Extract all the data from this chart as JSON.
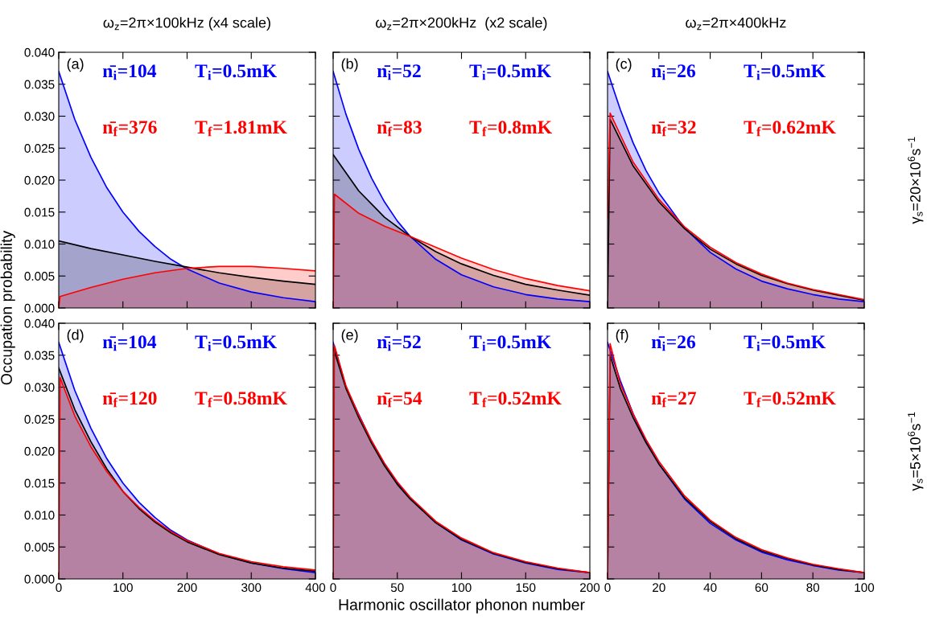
{
  "chart_data": [
    {
      "type": "area",
      "title": "ω$_{z}$=2π×100kHz (x4 scale)",
      "ylabel": "Occupation probability",
      "tick_labels": "y",
      "annotations": [
        "(a)",
        "n̄$_{i}$=104",
        "T$_{i}$=0.5mK",
        "n̄$_{f}$=376",
        "T$_{f}$=1.81mK"
      ],
      "xlim": [
        0,
        400
      ],
      "xticks": [
        0,
        100,
        200,
        300,
        400
      ],
      "ylim": [
        0,
        0.04
      ],
      "yticks": [
        {
          "value": 0,
          "label": "0.000"
        },
        {
          "value": 0.005,
          "label": "0.005"
        },
        {
          "value": 0.01,
          "label": "0.010"
        },
        {
          "value": 0.015,
          "label": "0.015"
        },
        {
          "value": 0.02,
          "label": "0.020"
        },
        {
          "value": 0.025,
          "label": "0.025"
        },
        {
          "value": 0.03,
          "label": "0.030"
        },
        {
          "value": 0.035,
          "label": "0.035"
        },
        {
          "value": 0.04,
          "label": "0.040"
        }
      ],
      "series": [
        {
          "color": "#0000ff",
          "x": [
            0,
            25,
            50,
            75,
            100,
            125,
            150,
            175,
            200,
            250,
            300,
            350,
            400
          ],
          "values": [
            0.037,
            0.0295,
            0.0236,
            0.0188,
            0.015,
            0.012,
            0.0096,
            0.0076,
            0.0061,
            0.0039,
            0.0025,
            0.0016,
            0.001
          ]
        },
        {
          "color": "#000000",
          "x": [
            0,
            50,
            100,
            150,
            200,
            250,
            300,
            350,
            400
          ],
          "values": [
            0.0105,
            0.0093,
            0.0083,
            0.0073,
            0.0064,
            0.0055,
            0.0048,
            0.0042,
            0.0037
          ]
        },
        {
          "color": "#ff0000",
          "x": [
            0,
            2,
            50,
            100,
            150,
            200,
            250,
            300,
            350,
            400
          ],
          "values": [
            0.0,
            0.0018,
            0.0032,
            0.0045,
            0.0055,
            0.0062,
            0.0065,
            0.0065,
            0.0062,
            0.0058
          ]
        }
      ]
    },
    {
      "type": "area",
      "title": "ω$_{z}$=2π×200kHz  (x2 scale)",
      "tick_labels": false,
      "annotations": [
        "(b)",
        "n̄$_{i}$=52",
        "T$_{i}$=0.5mK",
        "n̄$_{f}$=83",
        "T$_{f}$=0.8mK"
      ],
      "xlim": [
        0,
        200
      ],
      "xticks": [
        0,
        50,
        100,
        150,
        200
      ],
      "ylim": [
        0,
        0.04
      ],
      "series": [
        {
          "color": "#0000ff",
          "x": [
            0,
            10,
            20,
            30,
            40,
            50,
            60,
            80,
            100,
            125,
            150,
            175,
            200
          ],
          "values": [
            0.037,
            0.0303,
            0.0248,
            0.0203,
            0.0166,
            0.0136,
            0.0112,
            0.0076,
            0.0052,
            0.0033,
            0.0021,
            0.0014,
            0.001
          ]
        },
        {
          "color": "#000000",
          "x": [
            0,
            20,
            40,
            60,
            80,
            100,
            125,
            150,
            175,
            200
          ],
          "values": [
            0.024,
            0.0183,
            0.0142,
            0.0112,
            0.0088,
            0.0069,
            0.0051,
            0.0037,
            0.0028,
            0.002
          ]
        },
        {
          "color": "#ff0000",
          "x": [
            0,
            1,
            20,
            40,
            60,
            80,
            100,
            125,
            150,
            175,
            200
          ],
          "values": [
            0.0,
            0.0178,
            0.0148,
            0.0128,
            0.0112,
            0.0095,
            0.0078,
            0.006,
            0.0046,
            0.0035,
            0.0027
          ]
        }
      ]
    },
    {
      "type": "area",
      "title": "ω$_{z}$=2π×400kHz",
      "y2label": "γ$_{s}$=20×10$^{6}$s$^{−1}$",
      "tick_labels": false,
      "annotations": [
        "(c)",
        "n̄$_{i}$=26",
        "T$_{i}$=0.5mK",
        "n̄$_{f}$=32",
        "T$_{f}$=0.62mK"
      ],
      "xlim": [
        0,
        100
      ],
      "xticks": [
        0,
        20,
        40,
        60,
        80,
        100
      ],
      "ylim": [
        0,
        0.04
      ],
      "series": [
        {
          "color": "#0000ff",
          "x": [
            0,
            5,
            10,
            15,
            20,
            30,
            40,
            50,
            60,
            70,
            80,
            90,
            100
          ],
          "values": [
            0.037,
            0.031,
            0.0258,
            0.0215,
            0.018,
            0.0125,
            0.0087,
            0.0061,
            0.0042,
            0.003,
            0.0021,
            0.0014,
            0.001
          ]
        },
        {
          "color": "#000000",
          "x": [
            0,
            1,
            10,
            20,
            30,
            40,
            50,
            60,
            70,
            80,
            90,
            100
          ],
          "values": [
            0.0,
            0.0295,
            0.0222,
            0.0166,
            0.0124,
            0.0092,
            0.0069,
            0.0051,
            0.0038,
            0.0028,
            0.002,
            0.0012
          ]
        },
        {
          "color": "#ff0000",
          "x": [
            0,
            1,
            10,
            20,
            30,
            40,
            50,
            60,
            70,
            80,
            90,
            100
          ],
          "values": [
            0.014,
            0.0305,
            0.0228,
            0.017,
            0.0127,
            0.0095,
            0.0071,
            0.0053,
            0.0039,
            0.0029,
            0.0021,
            0.0013
          ]
        }
      ]
    },
    {
      "type": "area",
      "annotations": [
        "(d)",
        "n̄$_{i}$=104",
        "T$_{i}$=0.5mK",
        "n̄$_{f}$=120",
        "T$_{f}$=0.58mK"
      ],
      "xlim": [
        0,
        400
      ],
      "xticks": [
        0,
        100,
        200,
        300,
        400
      ],
      "ylim": [
        0,
        0.04
      ],
      "yticks": [
        {
          "value": 0,
          "label": "0.000"
        },
        {
          "value": 0.005,
          "label": "0.005"
        },
        {
          "value": 0.01,
          "label": "0.010"
        },
        {
          "value": 0.015,
          "label": "0.015"
        },
        {
          "value": 0.02,
          "label": "0.020"
        },
        {
          "value": 0.025,
          "label": "0.025"
        },
        {
          "value": 0.03,
          "label": "0.030"
        },
        {
          "value": 0.035,
          "label": "0.035"
        },
        {
          "value": 0.04,
          "label": "0.040"
        }
      ],
      "series": [
        {
          "color": "#0000ff",
          "x": [
            0,
            25,
            50,
            75,
            100,
            125,
            150,
            175,
            200,
            250,
            300,
            350,
            400
          ],
          "values": [
            0.037,
            0.0295,
            0.0236,
            0.0188,
            0.015,
            0.012,
            0.0096,
            0.0076,
            0.0061,
            0.0039,
            0.0025,
            0.0016,
            0.001
          ]
        },
        {
          "color": "#000000",
          "x": [
            0,
            25,
            50,
            75,
            100,
            125,
            150,
            175,
            200,
            250,
            300,
            350,
            400
          ],
          "values": [
            0.033,
            0.0265,
            0.0215,
            0.0172,
            0.0137,
            0.011,
            0.0089,
            0.0072,
            0.0058,
            0.0038,
            0.0025,
            0.0017,
            0.0012
          ]
        },
        {
          "color": "#ff0000",
          "x": [
            0,
            2,
            25,
            50,
            75,
            100,
            125,
            150,
            175,
            200,
            250,
            300,
            350,
            400
          ],
          "values": [
            0.0,
            0.0315,
            0.0255,
            0.0207,
            0.0168,
            0.0137,
            0.0112,
            0.0091,
            0.0074,
            0.006,
            0.004,
            0.0027,
            0.0019,
            0.0014
          ]
        }
      ]
    },
    {
      "type": "area",
      "xlabel": "Harmonic oscillator phonon number",
      "tick_labels": "x",
      "annotations": [
        "(e)",
        "n̄$_{i}$=52",
        "T$_{i}$=0.5mK",
        "n̄$_{f}$=54",
        "T$_{f}$=0.52mK"
      ],
      "xlim": [
        0,
        200
      ],
      "xticks": [
        0,
        50,
        100,
        150,
        200
      ],
      "ylim": [
        0,
        0.04
      ],
      "series": [
        {
          "color": "#0000ff",
          "x": [
            0,
            10,
            20,
            30,
            40,
            50,
            60,
            80,
            100,
            125,
            150,
            175,
            200
          ],
          "values": [
            0.037,
            0.03,
            0.0257,
            0.0215,
            0.018,
            0.015,
            0.0126,
            0.0088,
            0.0061,
            0.0039,
            0.0025,
            0.0015,
            0.001
          ]
        },
        {
          "color": "#000000",
          "x": [
            0,
            10,
            20,
            30,
            40,
            50,
            60,
            80,
            100,
            125,
            150,
            175,
            200
          ],
          "values": [
            0.0362,
            0.0298,
            0.0252,
            0.0212,
            0.0177,
            0.0148,
            0.0125,
            0.0088,
            0.0062,
            0.004,
            0.0026,
            0.0016,
            0.001
          ]
        },
        {
          "color": "#ff0000",
          "x": [
            0,
            1,
            10,
            20,
            30,
            40,
            50,
            60,
            80,
            100,
            125,
            150,
            175,
            200
          ],
          "values": [
            0.0,
            0.0365,
            0.0302,
            0.0256,
            0.0216,
            0.0181,
            0.0152,
            0.0128,
            0.009,
            0.0064,
            0.0041,
            0.0027,
            0.0017,
            0.001
          ]
        }
      ]
    },
    {
      "type": "area",
      "y2label": "γ$_{s}$=5×10$^{6}$s$^{−1}$",
      "tick_labels": "x",
      "annotations": [
        "(f)",
        "n̄$_{i}$=26",
        "T$_{i}$=0.5mK",
        "n̄$_{f}$=27",
        "T$_{f}$=0.52mK"
      ],
      "xlim": [
        0,
        100
      ],
      "xticks": [
        0,
        20,
        40,
        60,
        80,
        100
      ],
      "ylim": [
        0,
        0.04
      ],
      "series": [
        {
          "color": "#0000ff",
          "x": [
            0,
            5,
            10,
            15,
            20,
            30,
            40,
            50,
            60,
            70,
            80,
            90,
            100
          ],
          "values": [
            0.037,
            0.031,
            0.0258,
            0.0215,
            0.018,
            0.0125,
            0.0087,
            0.0061,
            0.0042,
            0.003,
            0.0021,
            0.0014,
            0.001
          ]
        },
        {
          "color": "#000000",
          "x": [
            0,
            1,
            5,
            10,
            15,
            20,
            30,
            40,
            50,
            60,
            70,
            80,
            90,
            100
          ],
          "values": [
            0.0,
            0.035,
            0.0298,
            0.0252,
            0.0213,
            0.018,
            0.0127,
            0.009,
            0.0063,
            0.0044,
            0.0032,
            0.0022,
            0.0015,
            0.001
          ]
        },
        {
          "color": "#ff0000",
          "x": [
            0,
            1,
            5,
            10,
            15,
            20,
            30,
            40,
            50,
            60,
            70,
            80,
            90,
            100
          ],
          "values": [
            0.0,
            0.0368,
            0.0305,
            0.0258,
            0.0218,
            0.0184,
            0.013,
            0.0092,
            0.0065,
            0.0046,
            0.0033,
            0.0023,
            0.0016,
            0.001
          ]
        }
      ]
    }
  ]
}
